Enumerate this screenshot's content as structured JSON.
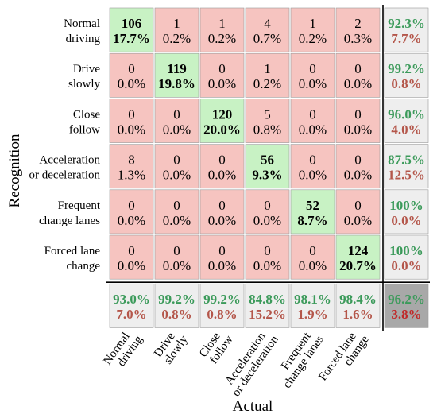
{
  "chart_data": {
    "type": "heatmap",
    "subtype": "confusion-matrix",
    "xlabel": "Actual",
    "ylabel": "Recognition",
    "row_labels": [
      [
        "Normal",
        "driving"
      ],
      [
        "Drive",
        "slowly"
      ],
      [
        "Close",
        "follow"
      ],
      [
        "Acceleration",
        "or deceleration"
      ],
      [
        "Frequent",
        "change lanes"
      ],
      [
        "Forced lane",
        "change"
      ]
    ],
    "col_labels": [
      [
        "Normal",
        "driving"
      ],
      [
        "Drive",
        "slowly"
      ],
      [
        "Close",
        "follow"
      ],
      [
        "Acceleration",
        "or deceleration"
      ],
      [
        "Frequent",
        "change lanes"
      ],
      [
        "Forced lane",
        "change"
      ]
    ],
    "counts": [
      [
        106,
        1,
        1,
        4,
        1,
        2
      ],
      [
        0,
        119,
        0,
        1,
        0,
        0
      ],
      [
        0,
        0,
        120,
        5,
        0,
        0
      ],
      [
        8,
        0,
        0,
        56,
        0,
        0
      ],
      [
        0,
        0,
        0,
        0,
        52,
        0
      ],
      [
        0,
        0,
        0,
        0,
        0,
        124
      ]
    ],
    "percents": [
      [
        "17.7%",
        "0.2%",
        "0.2%",
        "0.7%",
        "0.2%",
        "0.3%"
      ],
      [
        "0.0%",
        "19.8%",
        "0.0%",
        "0.2%",
        "0.0%",
        "0.0%"
      ],
      [
        "0.0%",
        "0.0%",
        "20.0%",
        "0.8%",
        "0.0%",
        "0.0%"
      ],
      [
        "1.3%",
        "0.0%",
        "0.0%",
        "9.3%",
        "0.0%",
        "0.0%"
      ],
      [
        "0.0%",
        "0.0%",
        "0.0%",
        "0.0%",
        "8.7%",
        "0.0%"
      ],
      [
        "0.0%",
        "0.0%",
        "0.0%",
        "0.0%",
        "0.0%",
        "20.7%"
      ]
    ],
    "row_summary": [
      [
        "92.3%",
        "7.7%"
      ],
      [
        "99.2%",
        "0.8%"
      ],
      [
        "96.0%",
        "4.0%"
      ],
      [
        "87.5%",
        "12.5%"
      ],
      [
        "100%",
        "0.0%"
      ],
      [
        "100%",
        "0.0%"
      ]
    ],
    "col_summary": [
      [
        "93.0%",
        "7.0%"
      ],
      [
        "99.2%",
        "0.8%"
      ],
      [
        "99.2%",
        "0.8%"
      ],
      [
        "84.8%",
        "15.2%"
      ],
      [
        "98.1%",
        "1.9%"
      ],
      [
        "98.4%",
        "1.6%"
      ]
    ],
    "overall": [
      "96.2%",
      "3.8%"
    ],
    "colors": {
      "correct_cell": "#c8f2c4",
      "error_cell": "#f6c4c0",
      "summary_cell": "#eeeeee",
      "overall_cell": "#a8a8a8",
      "good_text": "#3b9a5a",
      "bad_text": "#b4564a",
      "overall_bad_text": "#c02a2a"
    }
  }
}
